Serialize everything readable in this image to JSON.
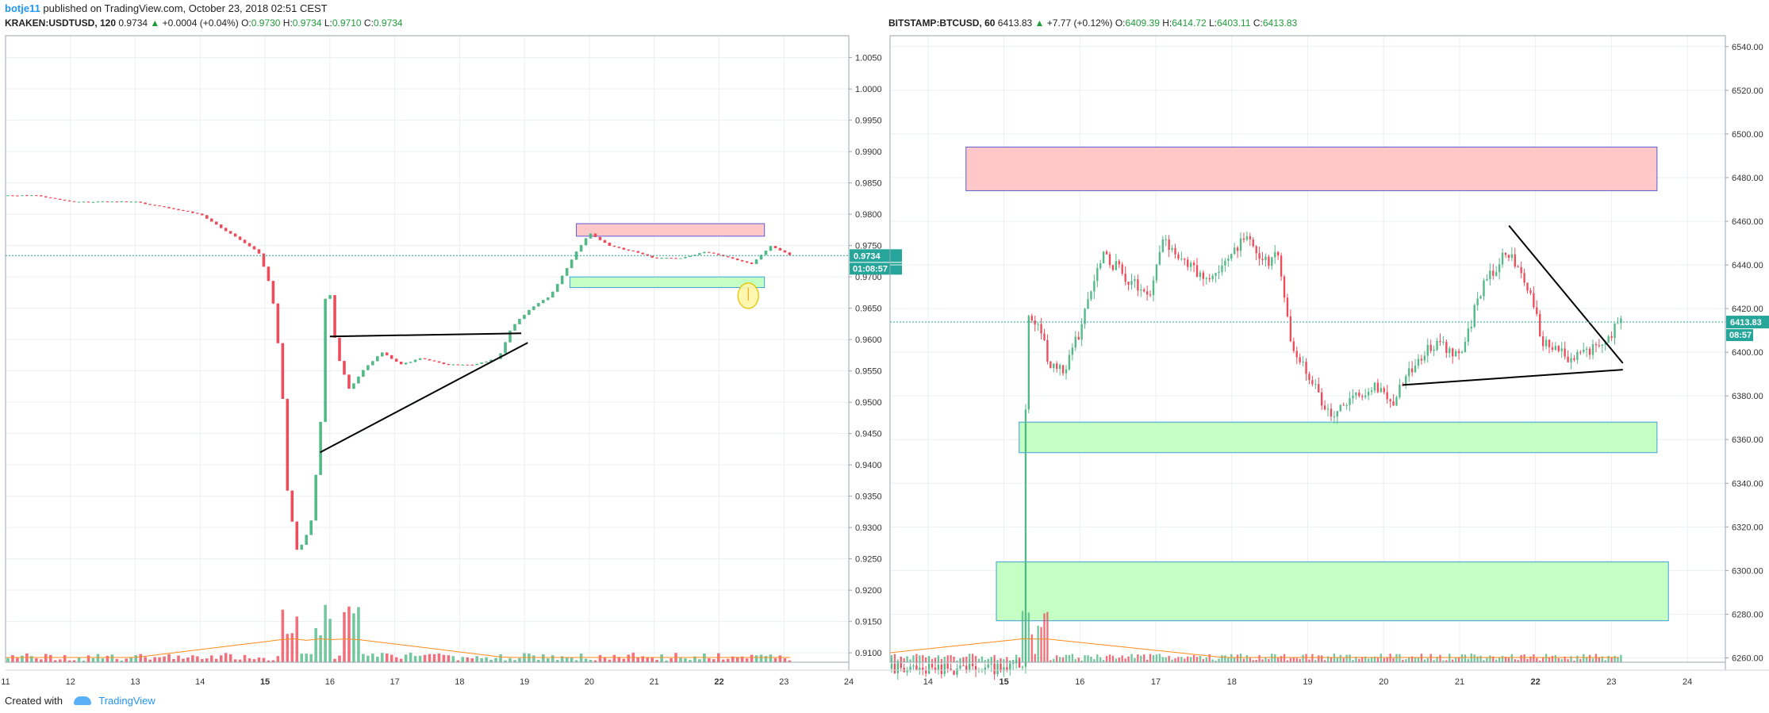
{
  "header": {
    "author": "botje11",
    "published": "published on TradingView.com, October 23, 2018 02:51 CEST"
  },
  "footer": {
    "created_with": "Created with",
    "brand": "TradingView"
  },
  "legend_labels": {
    "o": "O:",
    "h": "H:",
    "l": "L:",
    "c": "C:"
  },
  "left": {
    "symbol": "KRAKEN:USDTUSD, 120",
    "price": "0.9734",
    "change": "+0.0004 (+0.04%)",
    "open": "0.9730",
    "high": "0.9734",
    "low": "0.9710",
    "close": "0.9734",
    "last_tag": "0.9734",
    "timer_tag": "01:08:57"
  },
  "right": {
    "symbol": "BITSTAMP:BTCUSD, 60",
    "price": "6413.83",
    "change": "+7.77 (+0.12%)",
    "open": "6409.39",
    "high": "6414.72",
    "low": "6403.11",
    "close": "6413.83",
    "last_tag": "6413.83",
    "timer_tag": "08:57"
  },
  "colors": {
    "up": "#53b987",
    "down": "#eb4d5c",
    "grid": "#e9f0f3",
    "resistance_fill": "#ffc8c8",
    "support_fill": "#c4ffc4",
    "volume_ma": "#ff8c1a",
    "trendline": "#000000",
    "last_price": "#26a69a"
  },
  "chart_data": [
    {
      "type": "candlestick",
      "title": "KRAKEN:USDTUSD, 120",
      "x_ticks": [
        "11",
        "12",
        "13",
        "14",
        "15",
        "16",
        "17",
        "18",
        "19",
        "20",
        "21",
        "22",
        "23",
        "24"
      ],
      "y_ticks": [
        "0.9100",
        "0.9150",
        "0.9200",
        "0.9250",
        "0.9300",
        "0.9350",
        "0.9400",
        "0.9450",
        "0.9500",
        "0.9550",
        "0.9600",
        "0.9650",
        "0.9700",
        "0.9750",
        "0.9800",
        "0.9850",
        "0.9900",
        "0.9950",
        "1.0000",
        "1.0050"
      ],
      "ylim": [
        0.9085,
        1.0085
      ],
      "xlim": [
        11,
        24
      ],
      "last_price": 0.9734,
      "anchors": [
        [
          11.0,
          0.983
        ],
        [
          11.5,
          0.983
        ],
        [
          12.0,
          0.982
        ],
        [
          12.5,
          0.982
        ],
        [
          13.0,
          0.982
        ],
        [
          13.5,
          0.981
        ],
        [
          14.0,
          0.98
        ],
        [
          14.3,
          0.978
        ],
        [
          14.6,
          0.976
        ],
        [
          14.9,
          0.974
        ],
        [
          15.1,
          0.968
        ],
        [
          15.25,
          0.955
        ],
        [
          15.35,
          0.935
        ],
        [
          15.5,
          0.926
        ],
        [
          15.7,
          0.93
        ],
        [
          15.85,
          0.945
        ],
        [
          15.95,
          0.972
        ],
        [
          16.1,
          0.958
        ],
        [
          16.3,
          0.952
        ],
        [
          16.5,
          0.955
        ],
        [
          16.8,
          0.958
        ],
        [
          17.1,
          0.956
        ],
        [
          17.4,
          0.957
        ],
        [
          17.8,
          0.956
        ],
        [
          18.2,
          0.956
        ],
        [
          18.6,
          0.957
        ],
        [
          18.8,
          0.962
        ],
        [
          19.1,
          0.965
        ],
        [
          19.4,
          0.967
        ],
        [
          19.8,
          0.974
        ],
        [
          20.0,
          0.977
        ],
        [
          20.3,
          0.975
        ],
        [
          20.7,
          0.974
        ],
        [
          21.0,
          0.973
        ],
        [
          21.4,
          0.973
        ],
        [
          21.8,
          0.974
        ],
        [
          22.2,
          0.973
        ],
        [
          22.5,
          0.972
        ],
        [
          22.8,
          0.975
        ],
        [
          23.1,
          0.9734
        ]
      ],
      "zones": [
        {
          "kind": "resistance",
          "x": [
            19.8,
            22.7
          ],
          "y": [
            0.9765,
            0.9785
          ]
        },
        {
          "kind": "support",
          "x": [
            19.7,
            22.7
          ],
          "y": [
            0.9683,
            0.97
          ]
        }
      ],
      "trendlines": [
        {
          "x": [
            16.0,
            18.95
          ],
          "y": [
            0.9605,
            0.961
          ]
        },
        {
          "x": [
            15.85,
            19.05
          ],
          "y": [
            0.942,
            0.9595
          ]
        }
      ],
      "marker": {
        "x": 22.45,
        "y": 0.967
      }
    },
    {
      "type": "candlestick",
      "title": "BITSTAMP:BTCUSD, 60",
      "x_ticks": [
        "14",
        "15",
        "16",
        "17",
        "18",
        "19",
        "20",
        "21",
        "22",
        "23",
        "24"
      ],
      "y_ticks": [
        "6260.00",
        "6280.00",
        "6300.00",
        "6320.00",
        "6340.00",
        "6360.00",
        "6380.00",
        "6400.00",
        "6420.00",
        "6440.00",
        "6460.00",
        "6480.00",
        "6500.00",
        "6520.00",
        "6540.00"
      ],
      "ylim": [
        6258,
        6545
      ],
      "xlim": [
        13.5,
        24.5
      ],
      "last_price": 6413.83,
      "anchors": [
        [
          13.5,
          6255
        ],
        [
          15.0,
          6255
        ],
        [
          15.25,
          6258
        ],
        [
          15.3,
          6420
        ],
        [
          15.45,
          6412
        ],
        [
          15.6,
          6395
        ],
        [
          15.8,
          6390
        ],
        [
          16.0,
          6410
        ],
        [
          16.3,
          6445
        ],
        [
          16.6,
          6435
        ],
        [
          16.9,
          6425
        ],
        [
          17.1,
          6450
        ],
        [
          17.4,
          6440
        ],
        [
          17.7,
          6432
        ],
        [
          18.0,
          6445
        ],
        [
          18.2,
          6455
        ],
        [
          18.4,
          6440
        ],
        [
          18.6,
          6445
        ],
        [
          18.8,
          6400
        ],
        [
          19.0,
          6390
        ],
        [
          19.3,
          6370
        ],
        [
          19.6,
          6378
        ],
        [
          19.9,
          6385
        ],
        [
          20.1,
          6375
        ],
        [
          20.4,
          6395
        ],
        [
          20.7,
          6405
        ],
        [
          21.0,
          6398
        ],
        [
          21.3,
          6430
        ],
        [
          21.6,
          6445
        ],
        [
          21.8,
          6440
        ],
        [
          22.1,
          6405
        ],
        [
          22.4,
          6398
        ],
        [
          22.7,
          6400
        ],
        [
          22.9,
          6403
        ],
        [
          23.1,
          6413.83
        ]
      ],
      "zones": [
        {
          "kind": "resistance",
          "x": [
            14.5,
            23.6
          ],
          "y": [
            6474,
            6494
          ]
        },
        {
          "kind": "support",
          "x": [
            15.2,
            23.6
          ],
          "y": [
            6354,
            6368
          ]
        },
        {
          "kind": "support",
          "x": [
            14.9,
            23.75
          ],
          "y": [
            6277,
            6304
          ]
        }
      ],
      "trendlines": [
        {
          "x": [
            21.65,
            23.15
          ],
          "y": [
            6458,
            6395
          ]
        },
        {
          "x": [
            20.25,
            23.15
          ],
          "y": [
            6385,
            6392
          ]
        }
      ]
    }
  ]
}
